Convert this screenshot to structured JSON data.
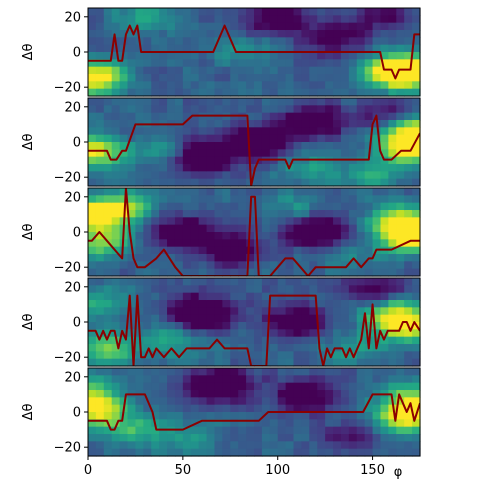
{
  "chart_data": {
    "type": "heatmap",
    "layout": "5 vertically stacked panels sharing the x axis",
    "xlabel": "φ",
    "ylabel": "Δθ",
    "xlim": [
      0,
      175
    ],
    "ylim": [
      -25,
      25
    ],
    "x_ticks": [
      0,
      50,
      100,
      150
    ],
    "y_ticks": [
      -20,
      0,
      20
    ],
    "colormap": "viridis",
    "line_color": "#8b0000",
    "panels": [
      {
        "trace": {
          "x": [
            0,
            12,
            14,
            16,
            18,
            20,
            22,
            24,
            26,
            28,
            30,
            35,
            40,
            45,
            60,
            62,
            66,
            70,
            72,
            74,
            78,
            80,
            82,
            85,
            90,
            100,
            120,
            130,
            134,
            138,
            142,
            146,
            148,
            150,
            152,
            154,
            156,
            160,
            162,
            164,
            166,
            168,
            170,
            172,
            175
          ],
          "y": [
            -5,
            -5,
            10,
            -5,
            -5,
            10,
            15,
            10,
            15,
            0,
            0,
            0,
            0,
            0,
            0,
            0,
            0,
            10,
            15,
            10,
            0,
            0,
            0,
            0,
            0,
            0,
            0,
            0,
            0,
            0,
            0,
            0,
            0,
            0,
            0,
            0,
            -10,
            -10,
            -15,
            -10,
            -10,
            -10,
            -10,
            10,
            10
          ]
        },
        "heat_blobs": [
          {
            "x": 168,
            "y": -10,
            "intensity": 0.8
          },
          {
            "x": 160,
            "y": -12,
            "intensity": 0.55
          },
          {
            "x": 5,
            "y": -12,
            "intensity": 0.45
          },
          {
            "x": 2,
            "y": -18,
            "intensity": 0.45
          },
          {
            "x": 100,
            "y": 20,
            "intensity": -0.5
          },
          {
            "x": 130,
            "y": 8,
            "intensity": -0.4
          },
          {
            "x": 30,
            "y": 20,
            "intensity": 0.3
          },
          {
            "x": 155,
            "y": 20,
            "intensity": -0.3
          },
          {
            "x": 80,
            "y": 0,
            "intensity": 0.2
          }
        ]
      },
      {
        "trace": {
          "x": [
            0,
            5,
            10,
            12,
            15,
            18,
            20,
            25,
            30,
            40,
            50,
            55,
            60,
            70,
            75,
            80,
            84,
            86,
            88,
            90,
            92,
            100,
            104,
            106,
            108,
            110,
            115,
            120,
            130,
            135,
            140,
            145,
            148,
            150,
            152,
            154,
            156,
            160,
            165,
            170,
            175
          ],
          "y": [
            -5,
            -5,
            -5,
            -10,
            -10,
            -5,
            -5,
            10,
            10,
            10,
            10,
            15,
            15,
            15,
            15,
            15,
            15,
            -25,
            -15,
            -10,
            -10,
            -10,
            -10,
            -15,
            -10,
            -10,
            -10,
            -10,
            -10,
            -10,
            -10,
            -10,
            -10,
            10,
            15,
            -5,
            -10,
            -10,
            -5,
            -5,
            5
          ]
        },
        "heat_blobs": [
          {
            "x": 172,
            "y": 5,
            "intensity": 0.85
          },
          {
            "x": 170,
            "y": -5,
            "intensity": 0.6
          },
          {
            "x": 3,
            "y": -5,
            "intensity": 0.7
          },
          {
            "x": 40,
            "y": -5,
            "intensity": 0.25
          },
          {
            "x": 60,
            "y": -8,
            "intensity": -0.6
          },
          {
            "x": 90,
            "y": 0,
            "intensity": -0.55
          },
          {
            "x": 120,
            "y": 12,
            "intensity": -0.5
          },
          {
            "x": 115,
            "y": -15,
            "intensity": 0.25
          },
          {
            "x": 150,
            "y": -18,
            "intensity": 0.3
          },
          {
            "x": 160,
            "y": 15,
            "intensity": -0.3
          }
        ]
      },
      {
        "trace": {
          "x": [
            0,
            2,
            6,
            10,
            14,
            18,
            20,
            22,
            24,
            26,
            30,
            36,
            40,
            46,
            50,
            55,
            60,
            70,
            75,
            80,
            84,
            86,
            88,
            90,
            92,
            96,
            100,
            104,
            108,
            112,
            116,
            120,
            130,
            136,
            140,
            144,
            148,
            150,
            152,
            156,
            160,
            170,
            175
          ],
          "y": [
            -5,
            -5,
            0,
            -5,
            -10,
            -15,
            25,
            0,
            -15,
            -20,
            -20,
            -15,
            -10,
            -20,
            -25,
            -25,
            -25,
            -25,
            -25,
            -25,
            -25,
            20,
            20,
            -25,
            -25,
            -25,
            -20,
            -15,
            -15,
            -20,
            -25,
            -20,
            -20,
            -20,
            -15,
            -20,
            -15,
            -15,
            -10,
            -10,
            -10,
            -5,
            -5
          ]
        },
        "heat_blobs": [
          {
            "x": 170,
            "y": -2,
            "intensity": 1.0
          },
          {
            "x": 165,
            "y": 8,
            "intensity": 0.55
          },
          {
            "x": 5,
            "y": 10,
            "intensity": 0.7
          },
          {
            "x": 8,
            "y": -5,
            "intensity": 0.55
          },
          {
            "x": 20,
            "y": 15,
            "intensity": 0.4
          },
          {
            "x": 50,
            "y": 0,
            "intensity": -0.5
          },
          {
            "x": 75,
            "y": -10,
            "intensity": -0.45
          },
          {
            "x": 120,
            "y": 0,
            "intensity": -0.55
          },
          {
            "x": 110,
            "y": 15,
            "intensity": 0.2
          },
          {
            "x": 140,
            "y": -15,
            "intensity": 0.15
          }
        ]
      },
      {
        "trace": {
          "x": [
            0,
            4,
            6,
            8,
            10,
            12,
            14,
            16,
            18,
            20,
            22,
            24,
            26,
            28,
            30,
            32,
            34,
            36,
            40,
            44,
            48,
            52,
            56,
            60,
            64,
            68,
            72,
            76,
            80,
            84,
            86,
            88,
            90,
            94,
            96,
            100,
            110,
            118,
            120,
            122,
            124,
            126,
            128,
            130,
            132,
            134,
            136,
            138,
            140,
            142,
            144,
            146,
            148,
            150,
            152,
            154,
            156,
            158,
            160,
            162,
            164,
            166,
            168,
            170,
            172,
            175
          ],
          "y": [
            -5,
            -5,
            -10,
            -5,
            -10,
            -5,
            -5,
            -15,
            -5,
            -10,
            15,
            -25,
            15,
            -20,
            -20,
            -15,
            -20,
            -15,
            -20,
            -15,
            -20,
            -15,
            -15,
            -15,
            -15,
            -10,
            -15,
            -15,
            -15,
            -15,
            -25,
            -25,
            -25,
            -25,
            15,
            15,
            15,
            15,
            15,
            -15,
            -25,
            -15,
            -20,
            -15,
            -15,
            -15,
            -20,
            -15,
            -20,
            -15,
            -10,
            5,
            -15,
            10,
            -15,
            -5,
            -10,
            -5,
            -5,
            -5,
            -5,
            0,
            0,
            -5,
            0,
            -5
          ]
        },
        "heat_blobs": [
          {
            "x": 168,
            "y": -2,
            "intensity": 0.7
          },
          {
            "x": 160,
            "y": 5,
            "intensity": 0.45
          },
          {
            "x": 10,
            "y": -15,
            "intensity": 0.5
          },
          {
            "x": 5,
            "y": 10,
            "intensity": 0.35
          },
          {
            "x": 60,
            "y": 5,
            "intensity": -0.7
          },
          {
            "x": 110,
            "y": 0,
            "intensity": -0.5
          },
          {
            "x": 45,
            "y": -10,
            "intensity": 0.3
          },
          {
            "x": 140,
            "y": -15,
            "intensity": 0.25
          },
          {
            "x": 150,
            "y": 18,
            "intensity": -0.35
          }
        ]
      },
      {
        "trace": {
          "x": [
            0,
            10,
            12,
            14,
            16,
            18,
            20,
            22,
            24,
            30,
            34,
            36,
            38,
            40,
            50,
            60,
            64,
            66,
            68,
            70,
            75,
            80,
            86,
            90,
            95,
            100,
            110,
            115,
            120,
            125,
            130,
            135,
            140,
            145,
            150,
            155,
            160,
            162,
            164,
            166,
            168,
            170,
            172,
            175
          ],
          "y": [
            -5,
            -5,
            -10,
            -10,
            -5,
            -5,
            10,
            10,
            10,
            10,
            0,
            -10,
            -10,
            -10,
            -10,
            -5,
            -5,
            -5,
            -5,
            -5,
            -5,
            -5,
            -5,
            -5,
            0,
            0,
            0,
            0,
            0,
            0,
            0,
            0,
            0,
            0,
            10,
            10,
            10,
            -5,
            10,
            5,
            0,
            5,
            -5,
            5
          ]
        },
        "heat_blobs": [
          {
            "x": 168,
            "y": -3,
            "intensity": 0.8
          },
          {
            "x": 172,
            "y": 8,
            "intensity": 0.5
          },
          {
            "x": 5,
            "y": 0,
            "intensity": 0.6
          },
          {
            "x": 2,
            "y": 12,
            "intensity": 0.45
          },
          {
            "x": 25,
            "y": -10,
            "intensity": 0.35
          },
          {
            "x": 70,
            "y": 15,
            "intensity": -0.65
          },
          {
            "x": 115,
            "y": 10,
            "intensity": -0.45
          },
          {
            "x": 140,
            "y": -15,
            "intensity": -0.25
          },
          {
            "x": 55,
            "y": -15,
            "intensity": 0.2
          }
        ]
      }
    ]
  }
}
